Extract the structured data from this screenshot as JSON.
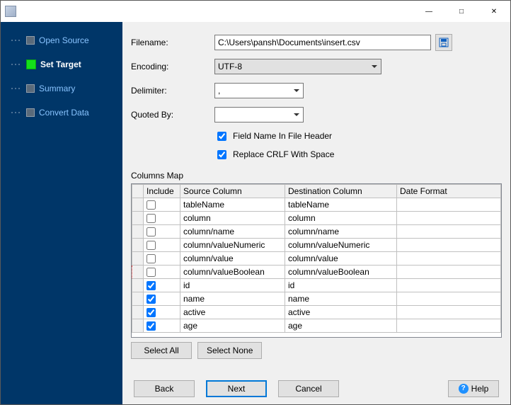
{
  "window": {
    "title": ""
  },
  "sidebar": {
    "steps": [
      {
        "label": "Open Source",
        "active": false
      },
      {
        "label": "Set Target",
        "active": true
      },
      {
        "label": "Summary",
        "active": false
      },
      {
        "label": "Convert Data",
        "active": false
      }
    ]
  },
  "form": {
    "filename_label": "Filename:",
    "filename_value": "C:\\Users\\pansh\\Documents\\insert.csv",
    "encoding_label": "Encoding:",
    "encoding_value": "UTF-8",
    "delimiter_label": "Delimiter:",
    "delimiter_value": ",",
    "quoted_label": "Quoted By:",
    "quoted_value": "",
    "chk_header_label": "Field Name In File Header",
    "chk_header_checked": true,
    "chk_crlf_label": "Replace CRLF With Space",
    "chk_crlf_checked": true
  },
  "columns_map": {
    "title": "Columns Map",
    "headers": {
      "include": "Include",
      "source": "Source Column",
      "dest": "Destination Column",
      "date": "Date Format"
    },
    "rows": [
      {
        "include": false,
        "source": "tableName",
        "dest": "tableName",
        "date": "",
        "sel": false
      },
      {
        "include": false,
        "source": "column",
        "dest": "column",
        "date": "",
        "sel": false
      },
      {
        "include": false,
        "source": "column/name",
        "dest": "column/name",
        "date": "",
        "sel": false
      },
      {
        "include": false,
        "source": "column/valueNumeric",
        "dest": "column/valueNumeric",
        "date": "",
        "sel": false
      },
      {
        "include": false,
        "source": "column/value",
        "dest": "column/value",
        "date": "",
        "sel": false
      },
      {
        "include": false,
        "source": "column/valueBoolean",
        "dest": "column/valueBoolean",
        "date": "",
        "sel": true
      },
      {
        "include": true,
        "source": "id",
        "dest": "id",
        "date": "",
        "sel": false
      },
      {
        "include": true,
        "source": "name",
        "dest": "name",
        "date": "",
        "sel": false
      },
      {
        "include": true,
        "source": "active",
        "dest": "active",
        "date": "",
        "sel": false
      },
      {
        "include": true,
        "source": "age",
        "dest": "age",
        "date": "",
        "sel": false
      }
    ]
  },
  "buttons": {
    "select_all": "Select All",
    "select_none": "Select None",
    "back": "Back",
    "next": "Next",
    "cancel": "Cancel",
    "help": "Help"
  },
  "colors": {
    "sidebar_bg": "#003668",
    "step_active": "#14e01a",
    "primary_border": "#0078d7",
    "panel_bg": "#f0f0f0"
  }
}
